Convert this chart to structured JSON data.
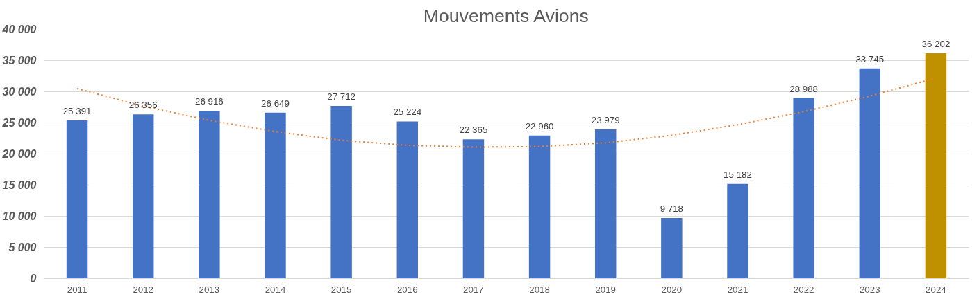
{
  "chart_data": {
    "type": "bar",
    "title": "Mouvements Avions",
    "categories": [
      "2011",
      "2012",
      "2013",
      "2014",
      "2015",
      "2016",
      "2017",
      "2018",
      "2019",
      "2020",
      "2021",
      "2022",
      "2023",
      "2024"
    ],
    "series": [
      {
        "colors": [
          "#4472c4",
          "#4472c4",
          "#4472c4",
          "#4472c4",
          "#4472c4",
          "#4472c4",
          "#4472c4",
          "#4472c4",
          "#4472c4",
          "#4472c4",
          "#4472c4",
          "#4472c4",
          "#4472c4",
          "#bf9000"
        ],
        "values": [
          25391,
          26356,
          26916,
          26649,
          27712,
          25224,
          22365,
          22960,
          23979,
          9718,
          15182,
          28988,
          33745,
          36202
        ],
        "value_labels": [
          "25 391",
          "26 356",
          "26 916",
          "26 649",
          "27 712",
          "25 224",
          "22 365",
          "22 960",
          "23 979",
          "9 718",
          "15 182",
          "28 988",
          "33 745",
          "36 202"
        ]
      },
      {
        "type": "line",
        "color": "#ed7d31",
        "line_style": "dotted",
        "values": [
          30500,
          27700,
          25400,
          23600,
          22200,
          21400,
          21100,
          21200,
          21800,
          23000,
          24700,
          26800,
          29300,
          32200
        ]
      }
    ],
    "ylim": [
      0,
      40000
    ],
    "yticks": [
      {
        "value": 0,
        "label": "0"
      },
      {
        "value": 5000,
        "label": "5 000"
      },
      {
        "value": 10000,
        "label": "10 000"
      },
      {
        "value": 15000,
        "label": "15 000"
      },
      {
        "value": 20000,
        "label": "20 000"
      },
      {
        "value": 25000,
        "label": "25 000"
      },
      {
        "value": 30000,
        "label": "30 000"
      },
      {
        "value": 35000,
        "label": "35 000"
      },
      {
        "value": 40000,
        "label": "40 000"
      }
    ],
    "grid": "y"
  }
}
